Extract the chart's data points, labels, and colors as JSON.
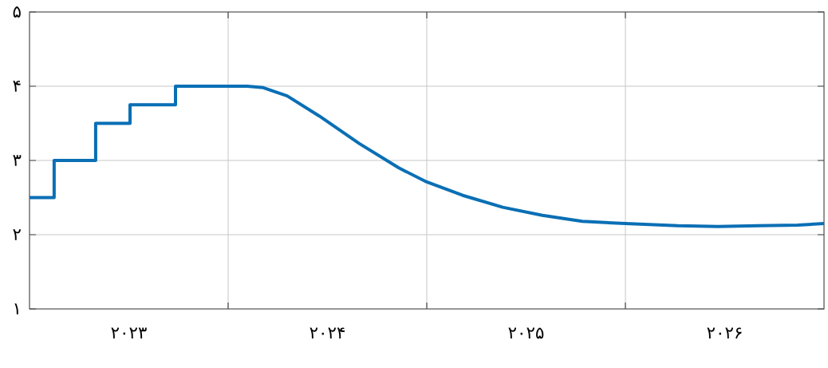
{
  "chart_data": {
    "type": "line",
    "color": "#0a6fb5",
    "x": [
      2023.0,
      2023.124,
      2023.124,
      2023.333,
      2023.333,
      2023.506,
      2023.506,
      2023.735,
      2023.735,
      2024.096,
      2024.177,
      2024.297,
      2024.458,
      2024.659,
      2024.859,
      2025.0,
      2025.181,
      2025.382,
      2025.582,
      2025.783,
      2026.0,
      2026.265,
      2026.466,
      2026.667,
      2026.867,
      2027.0
    ],
    "values": [
      2.5,
      2.5,
      3.0,
      3.0,
      3.5,
      3.5,
      3.75,
      3.75,
      4.0,
      4.0,
      3.98,
      3.87,
      3.6,
      3.23,
      2.9,
      2.71,
      2.53,
      2.37,
      2.26,
      2.18,
      2.15,
      2.12,
      2.11,
      2.12,
      2.13,
      2.15
    ],
    "xlim": [
      2023,
      2027
    ],
    "xticks": [
      {
        "value": 2023.5,
        "label": "۲۰۲۳"
      },
      {
        "value": 2024,
        "label": null
      },
      {
        "value": 2024.5,
        "label": "۲۰۲۴"
      },
      {
        "value": 2025,
        "label": null
      },
      {
        "value": 2025.5,
        "label": "۲۰۲۵"
      },
      {
        "value": 2026,
        "label": null
      },
      {
        "value": 2026.5,
        "label": "۲۰۲۶"
      }
    ],
    "ylim": [
      1,
      5
    ],
    "yticks": [
      {
        "value": 1,
        "label": "۱"
      },
      {
        "value": 2,
        "label": "۲"
      },
      {
        "value": 3,
        "label": "۳"
      },
      {
        "value": 4,
        "label": "۴"
      },
      {
        "value": 5,
        "label": "۵"
      }
    ],
    "grid": true,
    "marker": "none",
    "line_style": "solid"
  }
}
